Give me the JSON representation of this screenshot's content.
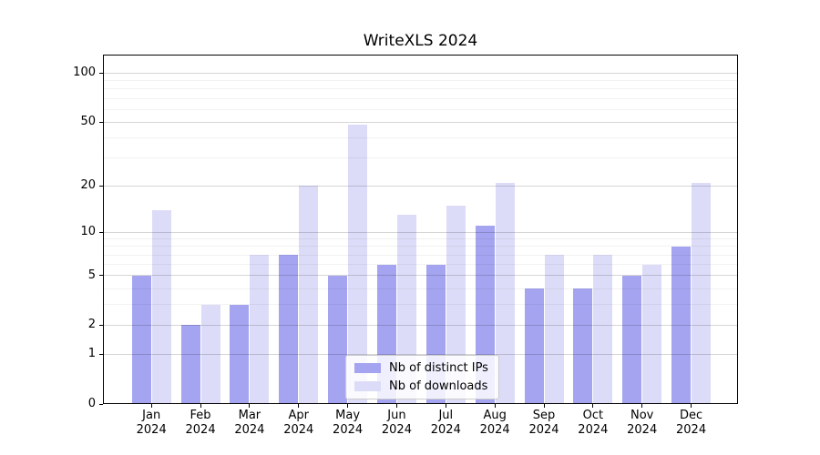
{
  "chart_data": {
    "type": "bar",
    "title": "WriteXLS 2024",
    "categories": [
      "Jan 2024",
      "Feb 2024",
      "Mar 2024",
      "Apr 2024",
      "May 2024",
      "Jun 2024",
      "Jul 2024",
      "Aug 2024",
      "Sep 2024",
      "Oct 2024",
      "Nov 2024",
      "Dec 2024"
    ],
    "x_tick_months": [
      "Jan",
      "Feb",
      "Mar",
      "Apr",
      "May",
      "Jun",
      "Jul",
      "Aug",
      "Sep",
      "Oct",
      "Nov",
      "Dec"
    ],
    "x_tick_year": "2024",
    "series": [
      {
        "name": "Nb of distinct IPs",
        "color": "#a4a4f0",
        "values": [
          5,
          2,
          3,
          7,
          5,
          6,
          6,
          11,
          4,
          4,
          5,
          8
        ]
      },
      {
        "name": "Nb of downloads",
        "color": "#dcdcf8",
        "values": [
          14,
          3,
          7,
          20,
          48,
          13,
          15,
          21,
          7,
          7,
          6,
          21
        ]
      }
    ],
    "xlabel": "",
    "ylabel": "",
    "y_scale": "log1p",
    "y_ticks": [
      0,
      1,
      2,
      5,
      10,
      20,
      50,
      100
    ],
    "y_minor_gridlines": [
      3,
      4,
      6,
      7,
      8,
      9,
      30,
      40,
      60,
      70,
      80,
      90
    ],
    "ylim": [
      0,
      130
    ],
    "grid": true,
    "legend": {
      "position": "lower center",
      "entries": [
        "Nb of distinct IPs",
        "Nb of downloads"
      ]
    },
    "colors": {
      "distinct_ips_bar": "#a4a4f0",
      "downloads_bar": "#dcdcf8",
      "axis": "#000000",
      "major_gridline": "#d9d9d9",
      "minor_gridline": "#f2f2f2",
      "legend_border": "#cccccc"
    }
  }
}
